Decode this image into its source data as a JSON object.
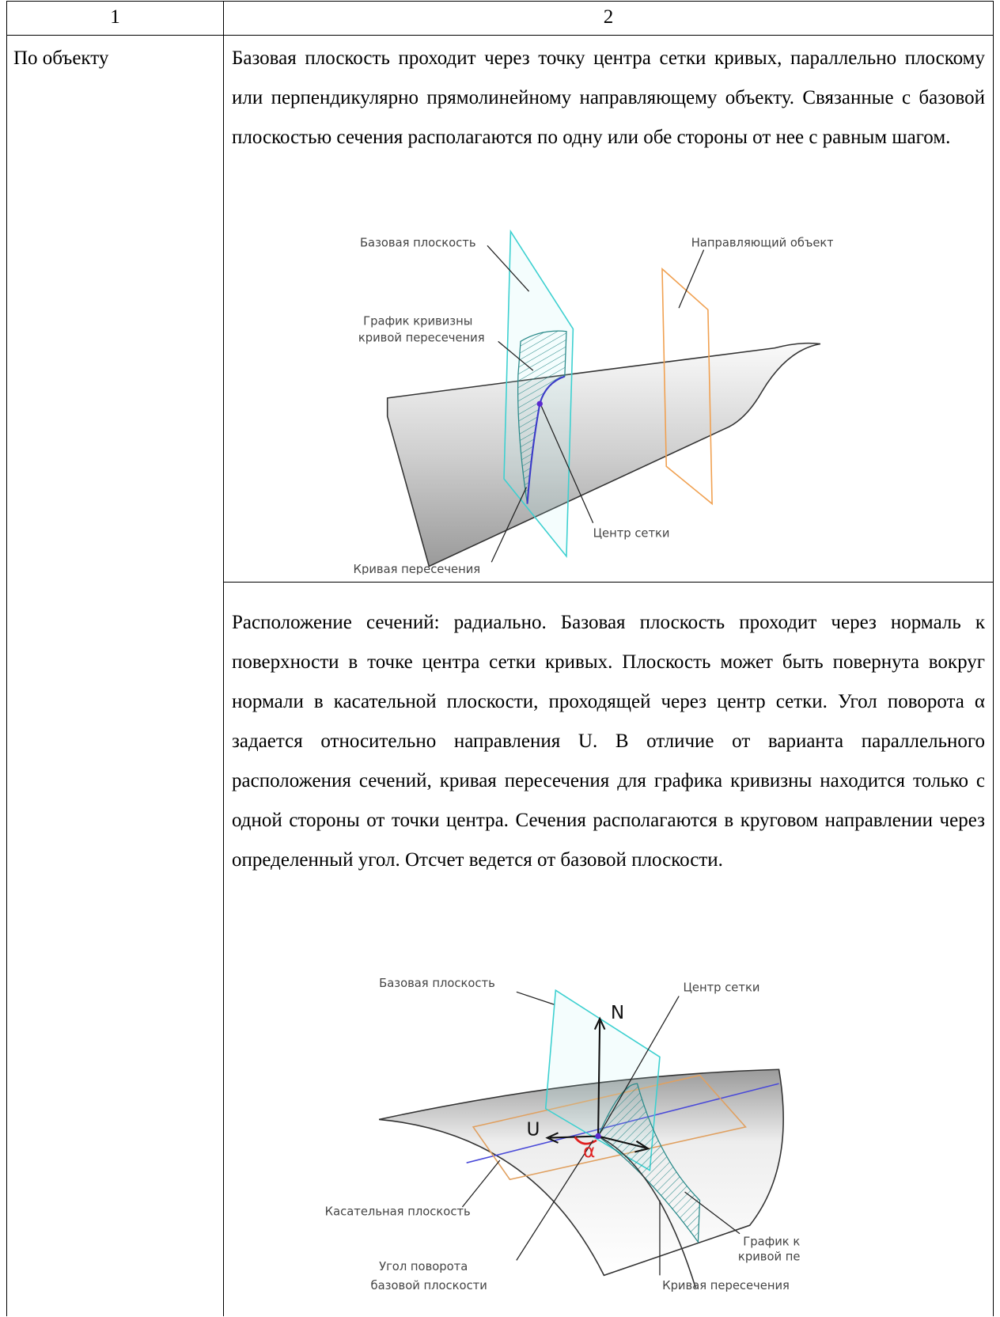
{
  "table": {
    "header": [
      "1",
      "2"
    ],
    "rows": [
      {
        "label": "По объекту",
        "items": [
          {
            "text": "Базовая плоскость проходит через точку центра сетки кривых, параллельно плоскому или перпендикулярно прямолинейному направляющему объекту. Связанные с базовой плоскостью сечения располагаются по одну или обе стороны от нее с равным шагом.",
            "figure": {
              "labels": [
                "Базовая плоскость",
                "Направляющий объект",
                "График кривизны",
                "кривой пересечения",
                "Центр сетки",
                "Кривая пересечения"
              ]
            }
          },
          {
            "text": "Расположение сечений: радиально. Базовая плоскость проходит через нормаль к поверхности в точке центра сетки кривых. Плоскость может быть повернута вокруг нормали в касательной плоскости, проходящей через центр сетки. Угол поворота α задается относительно направления U. В отличие от варианта параллельного расположения сечений, кривая пересечения для графика кривизны находится только с одной стороны от точки центра. Сечения располагаются в круговом направлении через определенный угол. Отсчет ведется от базовой плоскости.",
            "figure": {
              "labels": [
                "Базовая плоскость",
                "Центр сетки",
                "N",
                "U",
                "α",
                "Касательная плоскость",
                "Угол поворота",
                "базовой плоскости",
                "График кривизны",
                "кривой пересечения",
                "Кривая пересечения"
              ]
            }
          }
        ]
      }
    ]
  }
}
